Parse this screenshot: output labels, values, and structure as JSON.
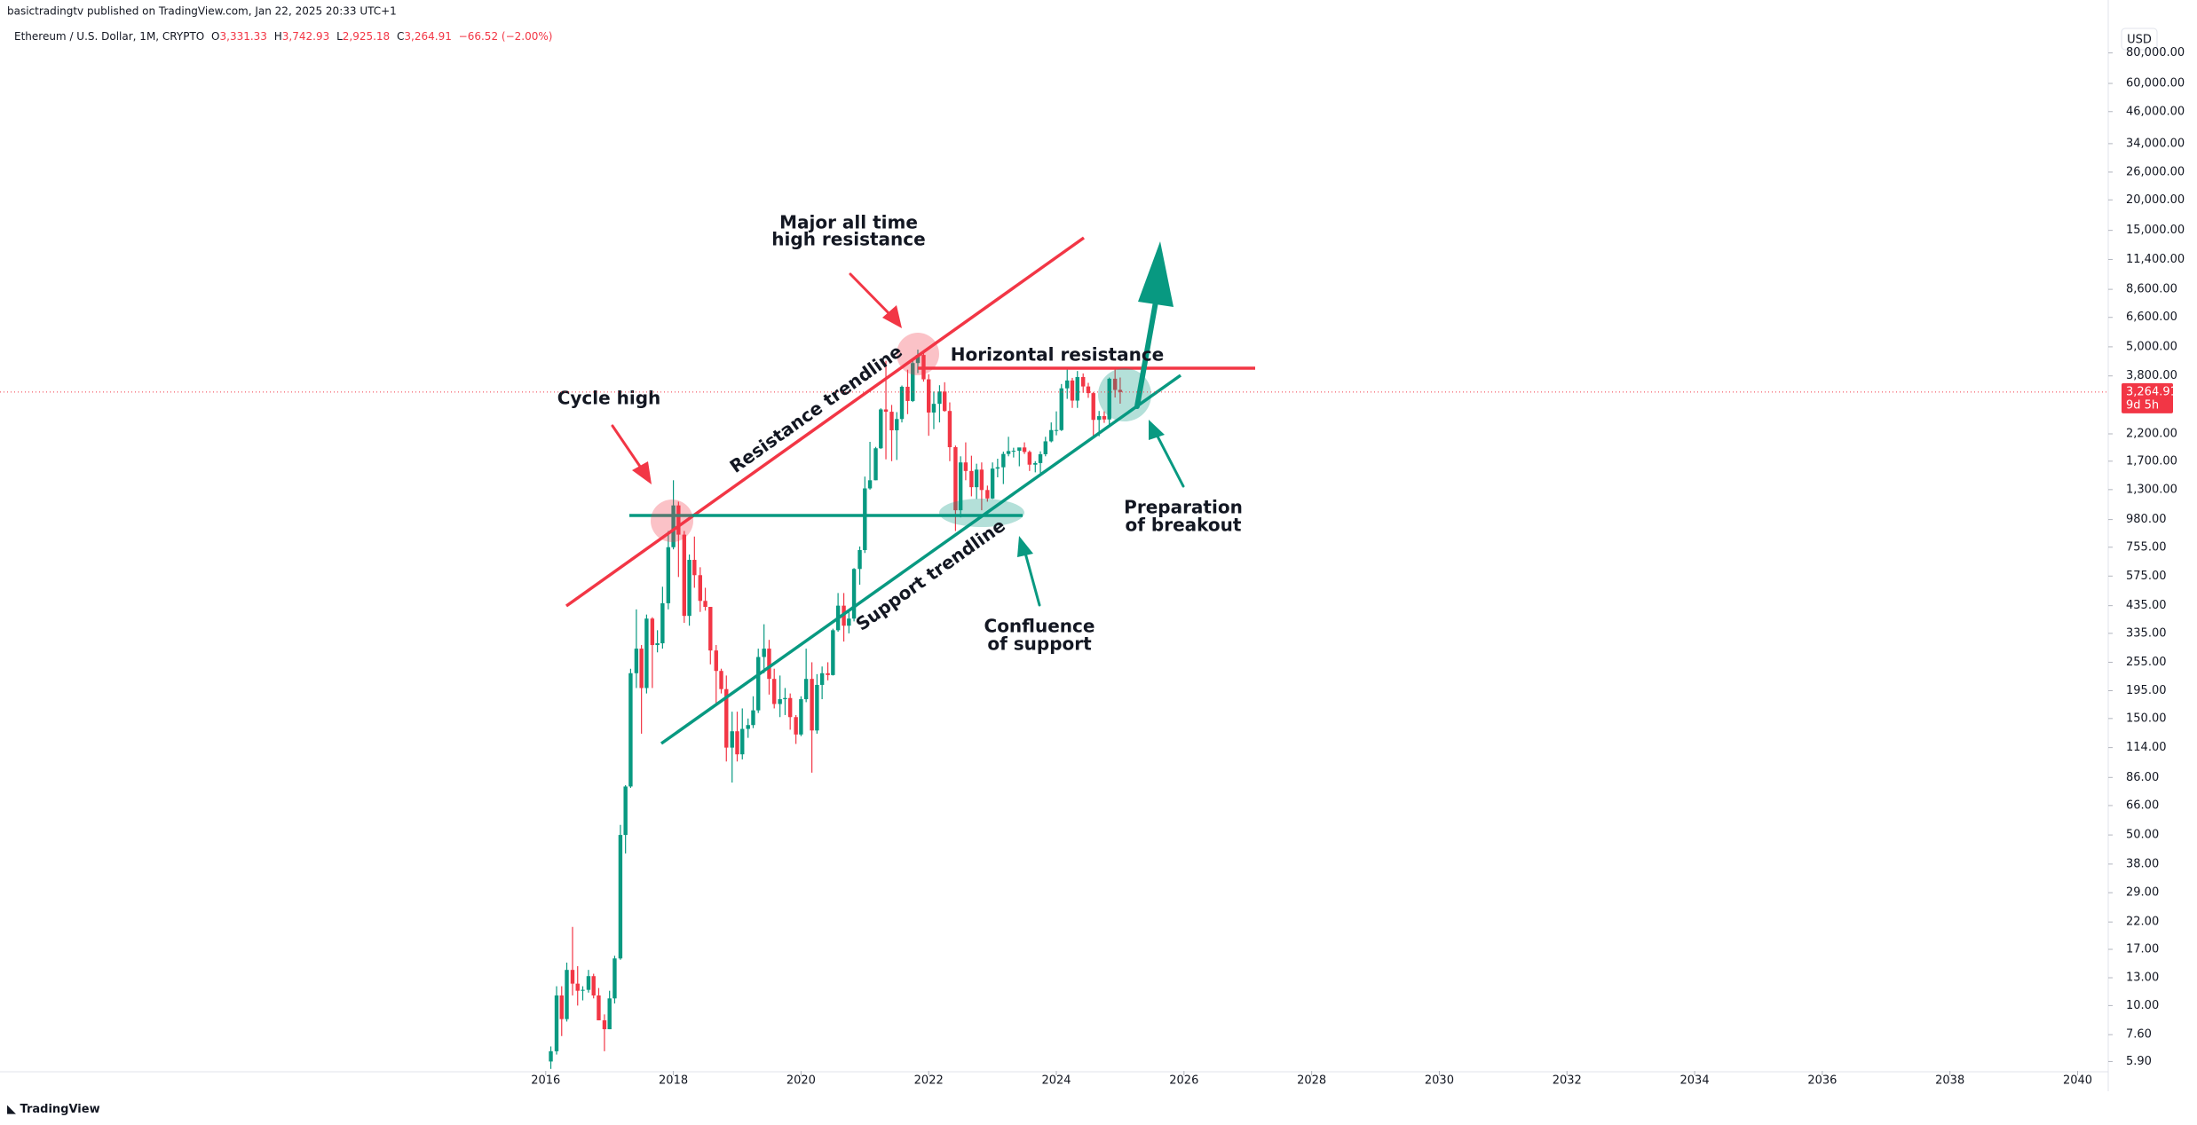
{
  "header": {
    "published": "basictradingtv published on TradingView.com, Jan 22, 2025 20:33 UTC+1",
    "symbol": "Ethereum / U.S. Dollar, 1M, CRYPTO",
    "o_label": "O",
    "o": "3,331.33",
    "h_label": "H",
    "h": "3,742.93",
    "l_label": "L",
    "l": "2,925.18",
    "c_label": "C",
    "c": "3,264.91",
    "change": "−66.52 (−2.00%)",
    "currency": "USD",
    "brand": "TradingView"
  },
  "annotations": {
    "cycle_high": "Cycle high",
    "ath_1": "Major all time",
    "ath_2": "high resistance",
    "horizontal": "Horizontal resistance",
    "res_trend": "Resistance trendline",
    "sup_trend": "Support trendline",
    "conf_1": "Confluence",
    "conf_2": "of support",
    "prep_1": "Preparation",
    "prep_2": "of breakout"
  },
  "chart_data": {
    "type": "candlestick",
    "log_scale": true,
    "up_color": "#089981",
    "down_color": "#f23645",
    "last_price": {
      "value": 3264.91,
      "label": "3,264.91"
    },
    "countdown": "9d 5h",
    "xlim": [
      2007.45,
      2040.48
    ],
    "xticks": [
      2016,
      2018,
      2020,
      2022,
      2024,
      2026,
      2028,
      2030,
      2032,
      2034,
      2036,
      2038,
      2040
    ],
    "ylim": [
      5.4,
      100000
    ],
    "yticks": [
      {
        "value": 80000,
        "label": "80,000.00"
      },
      {
        "value": 60000,
        "label": "60,000.00"
      },
      {
        "value": 46000,
        "label": "46,000.00"
      },
      {
        "value": 34000,
        "label": "34,000.00"
      },
      {
        "value": 26000,
        "label": "26,000.00"
      },
      {
        "value": 20000,
        "label": "20,000.00"
      },
      {
        "value": 15000,
        "label": "15,000.00"
      },
      {
        "value": 11400,
        "label": "11,400.00"
      },
      {
        "value": 8600,
        "label": "8,600.00"
      },
      {
        "value": 6600,
        "label": "6,600.00"
      },
      {
        "value": 5000,
        "label": "5,000.00"
      },
      {
        "value": 3800,
        "label": "3,800.00"
      },
      {
        "value": 2200,
        "label": "2,200.00"
      },
      {
        "value": 1700,
        "label": "1,700.00"
      },
      {
        "value": 1300,
        "label": "1,300.00"
      },
      {
        "value": 980,
        "label": "980.00"
      },
      {
        "value": 755,
        "label": "755.00"
      },
      {
        "value": 575,
        "label": "575.00"
      },
      {
        "value": 435,
        "label": "435.00"
      },
      {
        "value": 335,
        "label": "335.00"
      },
      {
        "value": 255,
        "label": "255.00"
      },
      {
        "value": 195,
        "label": "195.00"
      },
      {
        "value": 150,
        "label": "150.00"
      },
      {
        "value": 114,
        "label": "114.00"
      },
      {
        "value": 86,
        "label": "86.00"
      },
      {
        "value": 66,
        "label": "66.00"
      },
      {
        "value": 50,
        "label": "50.00"
      },
      {
        "value": 38,
        "label": "38.00"
      },
      {
        "value": 29,
        "label": "29.00"
      },
      {
        "value": 22,
        "label": "22.00"
      },
      {
        "value": 17,
        "label": "17.00"
      },
      {
        "value": 13,
        "label": "13.00"
      },
      {
        "value": 10,
        "label": "10.00"
      },
      {
        "value": 7.6,
        "label": "7.60"
      },
      {
        "value": 5.9,
        "label": "5.90"
      }
    ],
    "x": [
      2016.08,
      2016.17,
      2016.25,
      2016.33,
      2016.42,
      2016.5,
      2016.58,
      2016.67,
      2016.75,
      2016.83,
      2016.92,
      2017,
      2017.08,
      2017.17,
      2017.25,
      2017.33,
      2017.42,
      2017.5,
      2017.58,
      2017.67,
      2017.75,
      2017.83,
      2017.92,
      2018,
      2018.08,
      2018.17,
      2018.25,
      2018.33,
      2018.42,
      2018.5,
      2018.58,
      2018.67,
      2018.75,
      2018.83,
      2018.92,
      2019,
      2019.08,
      2019.17,
      2019.25,
      2019.33,
      2019.42,
      2019.5,
      2019.58,
      2019.67,
      2019.75,
      2019.83,
      2019.92,
      2020,
      2020.08,
      2020.17,
      2020.25,
      2020.33,
      2020.42,
      2020.5,
      2020.58,
      2020.67,
      2020.75,
      2020.83,
      2020.92,
      2021,
      2021.08,
      2021.17,
      2021.25,
      2021.33,
      2021.42,
      2021.5,
      2021.58,
      2021.67,
      2021.75,
      2021.83,
      2021.92,
      2022,
      2022.08,
      2022.17,
      2022.25,
      2022.33,
      2022.42,
      2022.5,
      2022.58,
      2022.67,
      2022.75,
      2022.83,
      2022.92,
      2023,
      2023.08,
      2023.17,
      2023.25,
      2023.33,
      2023.42,
      2023.5,
      2023.58,
      2023.67,
      2023.75,
      2023.83,
      2023.92,
      2024,
      2024.08,
      2024.17,
      2024.25,
      2024.33,
      2024.42,
      2024.5,
      2024.58,
      2024.67,
      2024.75,
      2024.83,
      2024.92,
      2025
    ],
    "candles": [
      [
        5.9,
        6.8,
        5.5,
        6.5
      ],
      [
        6.5,
        12,
        6.3,
        11
      ],
      [
        11,
        12,
        7.5,
        8.8
      ],
      [
        8.8,
        15,
        8.6,
        14
      ],
      [
        14,
        21,
        11,
        12.3
      ],
      [
        12.3,
        14.5,
        10,
        11.5
      ],
      [
        11.5,
        12,
        10.5,
        11.6
      ],
      [
        11.6,
        14,
        11.3,
        13.2
      ],
      [
        13.2,
        13.5,
        10.7,
        11
      ],
      [
        11,
        11.8,
        8.7,
        8.7
      ],
      [
        8.7,
        9.2,
        6.5,
        8
      ],
      [
        8,
        11.5,
        8,
        10.7
      ],
      [
        10.7,
        16,
        10.2,
        15.6
      ],
      [
        15.6,
        55,
        15.4,
        50
      ],
      [
        50,
        80,
        42,
        79
      ],
      [
        79,
        240,
        78,
        230
      ],
      [
        230,
        420,
        200,
        290
      ],
      [
        290,
        300,
        130,
        200
      ],
      [
        200,
        400,
        190,
        385
      ],
      [
        385,
        390,
        200,
        300
      ],
      [
        300,
        345,
        280,
        305
      ],
      [
        305,
        520,
        290,
        445
      ],
      [
        445,
        880,
        420,
        755
      ],
      [
        755,
        1420,
        740,
        1120
      ],
      [
        1120,
        1160,
        570,
        850
      ],
      [
        850,
        880,
        370,
        395
      ],
      [
        395,
        705,
        360,
        670
      ],
      [
        670,
        835,
        515,
        580
      ],
      [
        580,
        625,
        410,
        455
      ],
      [
        455,
        515,
        415,
        430
      ],
      [
        430,
        430,
        250,
        285
      ],
      [
        285,
        300,
        170,
        235
      ],
      [
        235,
        240,
        190,
        198
      ],
      [
        198,
        225,
        100,
        114
      ],
      [
        114,
        160,
        82,
        133
      ],
      [
        133,
        160,
        100,
        107
      ],
      [
        107,
        165,
        102,
        136
      ],
      [
        136,
        150,
        125,
        141
      ],
      [
        141,
        185,
        137,
        162
      ],
      [
        162,
        290,
        158,
        268
      ],
      [
        268,
        365,
        230,
        290
      ],
      [
        290,
        315,
        188,
        218
      ],
      [
        218,
        240,
        165,
        172
      ],
      [
        172,
        225,
        152,
        180
      ],
      [
        180,
        200,
        155,
        182
      ],
      [
        182,
        190,
        135,
        152
      ],
      [
        152,
        155,
        118,
        129
      ],
      [
        129,
        185,
        127,
        180
      ],
      [
        180,
        290,
        175,
        218
      ],
      [
        218,
        255,
        90,
        134
      ],
      [
        134,
        228,
        130,
        206
      ],
      [
        206,
        245,
        180,
        230
      ],
      [
        230,
        255,
        215,
        226
      ],
      [
        226,
        350,
        225,
        345
      ],
      [
        345,
        490,
        340,
        435
      ],
      [
        435,
        490,
        310,
        360
      ],
      [
        360,
        420,
        335,
        385
      ],
      [
        385,
        620,
        375,
        615
      ],
      [
        615,
        760,
        530,
        735
      ],
      [
        735,
        1470,
        715,
        1315
      ],
      [
        1315,
        2040,
        1300,
        1420
      ],
      [
        1420,
        1945,
        1420,
        1920
      ],
      [
        1920,
        2800,
        1910,
        2770
      ],
      [
        2770,
        4380,
        1730,
        2710
      ],
      [
        2710,
        2890,
        1700,
        2275
      ],
      [
        2275,
        2700,
        1720,
        2530
      ],
      [
        2530,
        3470,
        2450,
        3430
      ],
      [
        3430,
        4030,
        2650,
        3000
      ],
      [
        3000,
        4460,
        2970,
        4290
      ],
      [
        4290,
        4870,
        3900,
        4630
      ],
      [
        4630,
        4780,
        3600,
        3680
      ],
      [
        3680,
        3860,
        2160,
        2690
      ],
      [
        2690,
        3280,
        2300,
        2920
      ],
      [
        2920,
        3480,
        2450,
        3280
      ],
      [
        3280,
        3580,
        2710,
        2730
      ],
      [
        2730,
        2960,
        1700,
        1940
      ],
      [
        1940,
        1970,
        880,
        1070
      ],
      [
        1070,
        1780,
        1000,
        1680
      ],
      [
        1680,
        2030,
        1420,
        1550
      ],
      [
        1550,
        1790,
        1220,
        1330
      ],
      [
        1330,
        1660,
        1190,
        1570
      ],
      [
        1570,
        1680,
        1070,
        1295
      ],
      [
        1295,
        1350,
        1160,
        1196
      ],
      [
        1196,
        1680,
        1190,
        1585
      ],
      [
        1585,
        1740,
        1460,
        1605
      ],
      [
        1605,
        1860,
        1370,
        1820
      ],
      [
        1820,
        2140,
        1780,
        1870
      ],
      [
        1870,
        1930,
        1760,
        1875
      ],
      [
        1875,
        1930,
        1620,
        1935
      ],
      [
        1935,
        2030,
        1820,
        1855
      ],
      [
        1855,
        1880,
        1550,
        1645
      ],
      [
        1645,
        1700,
        1530,
        1670
      ],
      [
        1670,
        1865,
        1520,
        1815
      ],
      [
        1815,
        2140,
        1780,
        2050
      ],
      [
        2050,
        2450,
        2030,
        2280
      ],
      [
        2280,
        2720,
        2170,
        2280
      ],
      [
        2280,
        3520,
        2260,
        3380
      ],
      [
        3380,
        4090,
        3060,
        3640
      ],
      [
        3640,
        3730,
        2810,
        3010
      ],
      [
        3010,
        3980,
        2810,
        3760
      ],
      [
        3760,
        3890,
        3240,
        3440
      ],
      [
        3440,
        3560,
        3090,
        3230
      ],
      [
        3230,
        3260,
        2110,
        2510
      ],
      [
        2510,
        2730,
        2150,
        2600
      ],
      [
        2600,
        2720,
        2440,
        2520
      ],
      [
        2520,
        3740,
        2360,
        3700
      ],
      [
        3700,
        4110,
        3100,
        3330
      ],
      [
        3331.33,
        3742.93,
        2925.18,
        3264.91
      ]
    ]
  }
}
